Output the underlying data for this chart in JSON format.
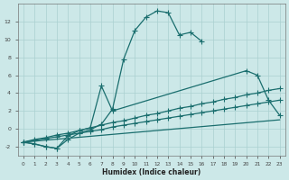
{
  "xlabel": "Humidex (Indice chaleur)",
  "bg_color": "#cce8e8",
  "grid_color": "#aad0d0",
  "line_color": "#1a6e6e",
  "xlim": [
    -0.5,
    23.5
  ],
  "ylim": [
    -3.0,
    14.0
  ],
  "xticks": [
    0,
    1,
    2,
    3,
    4,
    5,
    6,
    7,
    8,
    9,
    10,
    11,
    12,
    13,
    14,
    15,
    16,
    17,
    18,
    19,
    20,
    21,
    22,
    23
  ],
  "yticks": [
    -2,
    0,
    2,
    4,
    6,
    8,
    10,
    12
  ],
  "curve1_x": [
    0,
    1,
    2,
    3,
    4,
    5,
    6,
    7,
    8,
    9,
    10,
    11,
    12,
    13,
    14,
    15,
    16
  ],
  "curve1_y": [
    -1.5,
    -1.7,
    -2.0,
    -2.2,
    -1.2,
    -0.5,
    -0.1,
    0.5,
    2.2,
    7.8,
    11.0,
    12.5,
    13.2,
    13.0,
    10.5,
    10.8,
    9.8
  ],
  "curve2_x": [
    0,
    1,
    2,
    3,
    4,
    5,
    6,
    7,
    8,
    20,
    21,
    22,
    23
  ],
  "curve2_y": [
    -1.5,
    -1.7,
    -2.0,
    -2.2,
    -0.8,
    -0.2,
    0.1,
    4.8,
    2.0,
    6.5,
    6.0,
    3.2,
    1.5
  ],
  "line1_x": [
    0,
    1,
    2,
    3,
    4,
    5,
    6,
    7,
    8,
    9,
    10,
    11,
    12,
    13,
    14,
    15,
    16,
    17,
    18,
    19,
    20,
    21,
    22,
    23
  ],
  "line1_y": [
    -1.5,
    -1.3,
    -1.1,
    -0.9,
    -0.7,
    -0.5,
    -0.3,
    -0.1,
    0.2,
    0.4,
    0.6,
    0.8,
    1.0,
    1.2,
    1.4,
    1.6,
    1.8,
    2.0,
    2.2,
    2.4,
    2.6,
    2.8,
    3.0,
    3.2
  ],
  "line2_x": [
    0,
    1,
    2,
    3,
    4,
    5,
    6,
    7,
    8,
    9,
    10,
    11,
    12,
    13,
    14,
    15,
    16,
    17,
    18,
    19,
    20,
    21,
    22,
    23
  ],
  "line2_y": [
    -1.5,
    -1.2,
    -1.0,
    -0.7,
    -0.5,
    -0.2,
    0.1,
    0.4,
    0.7,
    0.9,
    1.2,
    1.5,
    1.7,
    2.0,
    2.3,
    2.5,
    2.8,
    3.0,
    3.3,
    3.5,
    3.8,
    4.0,
    4.3,
    4.5
  ],
  "line3_x": [
    0,
    23
  ],
  "line3_y": [
    -1.5,
    1.0
  ]
}
